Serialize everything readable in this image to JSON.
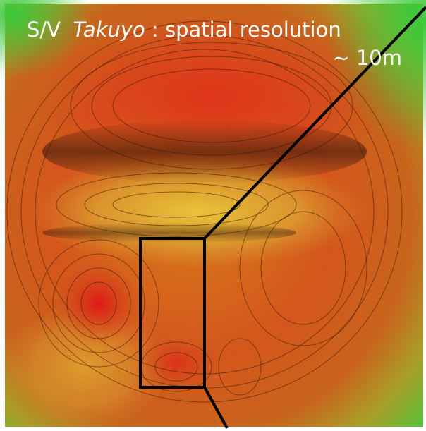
{
  "caption": {
    "vessel_prefix": "S/V",
    "vessel_name": "Takuyo",
    "description": ": spatial resolution",
    "resolution": "~ 10m"
  }
}
